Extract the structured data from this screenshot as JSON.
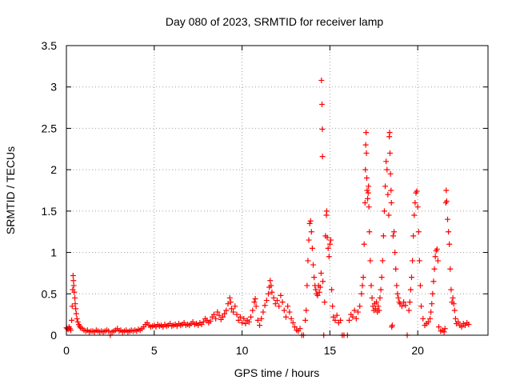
{
  "chart_data": {
    "type": "scatter",
    "title": "Day 080 of 2023, SRMTID for receiver lamp",
    "xlabel": "GPS time / hours",
    "ylabel": "SRMTID / TECUs",
    "xlim": [
      0,
      24
    ],
    "ylim": [
      0,
      3.5
    ],
    "xticks": [
      0,
      5,
      10,
      15,
      20
    ],
    "xtick_labels": [
      "0",
      "5",
      "10",
      "15",
      "20"
    ],
    "yticks": [
      0,
      0.5,
      1,
      1.5,
      2,
      2.5,
      3,
      3.5
    ],
    "ytick_labels": [
      "0",
      "0.5",
      "1",
      "1.5",
      "2",
      "2.5",
      "3",
      "3.5"
    ],
    "grid": true,
    "marker": "+",
    "color": "#ff0000",
    "series": [
      {
        "name": "SRMTID",
        "points": [
          [
            0.0,
            0.09
          ],
          [
            0.05,
            0.08
          ],
          [
            0.1,
            0.07
          ],
          [
            0.15,
            0.1
          ],
          [
            0.2,
            0.08
          ],
          [
            0.25,
            0.06
          ],
          [
            0.3,
            0.18
          ],
          [
            0.33,
            0.35
          ],
          [
            0.36,
            0.55
          ],
          [
            0.38,
            0.72
          ],
          [
            0.4,
            0.66
          ],
          [
            0.42,
            0.6
          ],
          [
            0.45,
            0.52
          ],
          [
            0.48,
            0.45
          ],
          [
            0.5,
            0.38
          ],
          [
            0.53,
            0.32
          ],
          [
            0.56,
            0.26
          ],
          [
            0.6,
            0.2
          ],
          [
            0.65,
            0.16
          ],
          [
            0.7,
            0.13
          ],
          [
            0.75,
            0.11
          ],
          [
            0.8,
            0.09
          ],
          [
            0.9,
            0.08
          ],
          [
            1.0,
            0.06
          ],
          [
            1.1,
            0.05
          ],
          [
            1.2,
            0.06
          ],
          [
            1.3,
            0.04
          ],
          [
            1.4,
            0.05
          ],
          [
            1.5,
            0.05
          ],
          [
            1.6,
            0.04
          ],
          [
            1.7,
            0.06
          ],
          [
            1.8,
            0.05
          ],
          [
            1.9,
            0.04
          ],
          [
            2.0,
            0.05
          ],
          [
            2.1,
            0.04
          ],
          [
            2.2,
            0.05
          ],
          [
            2.3,
            0.06
          ],
          [
            2.4,
            0.05
          ],
          [
            2.5,
            0.0
          ],
          [
            2.6,
            0.04
          ],
          [
            2.7,
            0.05
          ],
          [
            2.8,
            0.06
          ],
          [
            2.9,
            0.08
          ],
          [
            3.0,
            0.05
          ],
          [
            3.1,
            0.06
          ],
          [
            3.2,
            0.04
          ],
          [
            3.3,
            0.05
          ],
          [
            3.4,
            0.06
          ],
          [
            3.5,
            0.04
          ],
          [
            3.6,
            0.05
          ],
          [
            3.7,
            0.06
          ],
          [
            3.8,
            0.05
          ],
          [
            3.9,
            0.06
          ],
          [
            4.0,
            0.05
          ],
          [
            4.1,
            0.07
          ],
          [
            4.2,
            0.06
          ],
          [
            4.3,
            0.08
          ],
          [
            4.4,
            0.1
          ],
          [
            4.5,
            0.13
          ],
          [
            4.6,
            0.15
          ],
          [
            4.7,
            0.12
          ],
          [
            4.8,
            0.1
          ],
          [
            4.9,
            0.11
          ],
          [
            5.0,
            0.12
          ],
          [
            5.1,
            0.1
          ],
          [
            5.2,
            0.13
          ],
          [
            5.3,
            0.11
          ],
          [
            5.4,
            0.12
          ],
          [
            5.5,
            0.1
          ],
          [
            5.6,
            0.13
          ],
          [
            5.7,
            0.11
          ],
          [
            5.8,
            0.12
          ],
          [
            5.9,
            0.14
          ],
          [
            6.0,
            0.11
          ],
          [
            6.1,
            0.12
          ],
          [
            6.2,
            0.13
          ],
          [
            6.3,
            0.11
          ],
          [
            6.4,
            0.14
          ],
          [
            6.5,
            0.12
          ],
          [
            6.6,
            0.13
          ],
          [
            6.7,
            0.15
          ],
          [
            6.8,
            0.12
          ],
          [
            6.9,
            0.13
          ],
          [
            7.0,
            0.12
          ],
          [
            7.1,
            0.14
          ],
          [
            7.2,
            0.16
          ],
          [
            7.3,
            0.13
          ],
          [
            7.4,
            0.14
          ],
          [
            7.5,
            0.12
          ],
          [
            7.6,
            0.15
          ],
          [
            7.7,
            0.13
          ],
          [
            7.8,
            0.16
          ],
          [
            7.9,
            0.2
          ],
          [
            8.0,
            0.18
          ],
          [
            8.1,
            0.15
          ],
          [
            8.2,
            0.17
          ],
          [
            8.3,
            0.22
          ],
          [
            8.4,
            0.25
          ],
          [
            8.5,
            0.2
          ],
          [
            8.6,
            0.28
          ],
          [
            8.7,
            0.24
          ],
          [
            8.8,
            0.19
          ],
          [
            8.9,
            0.22
          ],
          [
            9.0,
            0.26
          ],
          [
            9.1,
            0.3
          ],
          [
            9.2,
            0.38
          ],
          [
            9.3,
            0.45
          ],
          [
            9.35,
            0.4
          ],
          [
            9.4,
            0.32
          ],
          [
            9.5,
            0.28
          ],
          [
            9.6,
            0.35
          ],
          [
            9.7,
            0.25
          ],
          [
            9.8,
            0.18
          ],
          [
            9.9,
            0.22
          ],
          [
            10.0,
            0.15
          ],
          [
            10.1,
            0.2
          ],
          [
            10.2,
            0.14
          ],
          [
            10.3,
            0.18
          ],
          [
            10.4,
            0.16
          ],
          [
            10.5,
            0.22
          ],
          [
            10.6,
            0.3
          ],
          [
            10.7,
            0.4
          ],
          [
            10.75,
            0.44
          ],
          [
            10.8,
            0.35
          ],
          [
            10.9,
            0.18
          ],
          [
            11.0,
            0.12
          ],
          [
            11.1,
            0.2
          ],
          [
            11.2,
            0.28
          ],
          [
            11.3,
            0.36
          ],
          [
            11.4,
            0.42
          ],
          [
            11.5,
            0.5
          ],
          [
            11.55,
            0.58
          ],
          [
            11.6,
            0.66
          ],
          [
            11.65,
            0.6
          ],
          [
            11.7,
            0.52
          ],
          [
            11.8,
            0.45
          ],
          [
            11.9,
            0.38
          ],
          [
            12.0,
            0.42
          ],
          [
            12.1,
            0.35
          ],
          [
            12.2,
            0.48
          ],
          [
            12.3,
            0.4
          ],
          [
            12.4,
            0.3
          ],
          [
            12.5,
            0.22
          ],
          [
            12.6,
            0.35
          ],
          [
            12.7,
            0.28
          ],
          [
            12.8,
            0.2
          ],
          [
            12.9,
            0.15
          ],
          [
            13.0,
            0.1
          ],
          [
            13.1,
            0.06
          ],
          [
            13.2,
            0.05
          ],
          [
            13.3,
            0.08
          ],
          [
            13.4,
            0.0
          ],
          [
            13.5,
            0.0
          ],
          [
            13.6,
            0.18
          ],
          [
            13.65,
            0.3
          ],
          [
            13.7,
            0.6
          ],
          [
            13.75,
            0.9
          ],
          [
            13.8,
            1.15
          ],
          [
            13.85,
            1.35
          ],
          [
            13.9,
            1.38
          ],
          [
            13.95,
            1.25
          ],
          [
            14.0,
            1.05
          ],
          [
            14.05,
            0.85
          ],
          [
            14.1,
            0.7
          ],
          [
            14.15,
            0.6
          ],
          [
            14.2,
            0.55
          ],
          [
            14.25,
            0.5
          ],
          [
            14.3,
            0.48
          ],
          [
            14.35,
            0.6
          ],
          [
            14.4,
            0.52
          ],
          [
            14.45,
            0.58
          ],
          [
            14.5,
            0.75
          ],
          [
            14.52,
            3.08
          ],
          [
            14.55,
            2.79
          ],
          [
            14.57,
            2.49
          ],
          [
            14.58,
            2.16
          ],
          [
            14.6,
            0.65
          ],
          [
            14.65,
            0.0
          ],
          [
            14.7,
            0.4
          ],
          [
            14.75,
            1.2
          ],
          [
            14.8,
            1.45
          ],
          [
            14.82,
            1.5
          ],
          [
            14.85,
            1.18
          ],
          [
            14.9,
            1.05
          ],
          [
            14.95,
            0.95
          ],
          [
            15.0,
            1.1
          ],
          [
            15.05,
            1.15
          ],
          [
            15.1,
            0.55
          ],
          [
            15.15,
            0.35
          ],
          [
            15.2,
            0.22
          ],
          [
            15.3,
            0.18
          ],
          [
            15.4,
            0.24
          ],
          [
            15.5,
            0.15
          ],
          [
            15.6,
            0.18
          ],
          [
            15.7,
            0.0
          ],
          [
            15.8,
            0.0
          ],
          [
            16.0,
            0.0
          ],
          [
            16.1,
            0.18
          ],
          [
            16.2,
            0.25
          ],
          [
            16.3,
            0.22
          ],
          [
            16.4,
            0.3
          ],
          [
            16.5,
            0.2
          ],
          [
            16.6,
            0.28
          ],
          [
            16.7,
            0.35
          ],
          [
            16.8,
            0.5
          ],
          [
            16.85,
            0.6
          ],
          [
            16.9,
            0.7
          ],
          [
            16.95,
            1.1
          ],
          [
            17.0,
            1.6
          ],
          [
            17.02,
            2.0
          ],
          [
            17.04,
            2.3
          ],
          [
            17.06,
            2.45
          ],
          [
            17.08,
            2.2
          ],
          [
            17.1,
            1.9
          ],
          [
            17.12,
            1.75
          ],
          [
            17.15,
            1.65
          ],
          [
            17.18,
            1.72
          ],
          [
            17.2,
            1.8
          ],
          [
            17.22,
            1.55
          ],
          [
            17.25,
            1.25
          ],
          [
            17.3,
            0.9
          ],
          [
            17.35,
            0.6
          ],
          [
            17.4,
            0.45
          ],
          [
            17.45,
            0.35
          ],
          [
            17.5,
            0.3
          ],
          [
            17.55,
            0.38
          ],
          [
            17.6,
            0.32
          ],
          [
            17.65,
            0.4
          ],
          [
            17.7,
            0.28
          ],
          [
            17.75,
            0.35
          ],
          [
            17.8,
            0.3
          ],
          [
            17.85,
            0.45
          ],
          [
            17.9,
            0.55
          ],
          [
            17.95,
            0.7
          ],
          [
            18.0,
            0.9
          ],
          [
            18.05,
            1.2
          ],
          [
            18.1,
            1.5
          ],
          [
            18.15,
            1.8
          ],
          [
            18.2,
            2.1
          ],
          [
            18.25,
            2.0
          ],
          [
            18.3,
            1.7
          ],
          [
            18.35,
            1.45
          ],
          [
            18.38,
            2.4
          ],
          [
            18.4,
            2.45
          ],
          [
            18.42,
            2.2
          ],
          [
            18.45,
            1.95
          ],
          [
            18.48,
            1.75
          ],
          [
            18.5,
            1.6
          ],
          [
            18.52,
            0.1
          ],
          [
            18.55,
            0.12
          ],
          [
            18.6,
            1.2
          ],
          [
            18.65,
            1.25
          ],
          [
            18.7,
            1.0
          ],
          [
            18.75,
            0.8
          ],
          [
            18.8,
            0.6
          ],
          [
            18.85,
            0.5
          ],
          [
            18.9,
            0.45
          ],
          [
            18.95,
            0.4
          ],
          [
            19.0,
            0.38
          ],
          [
            19.1,
            0.35
          ],
          [
            19.2,
            0.4
          ],
          [
            19.3,
            0.36
          ],
          [
            19.4,
            0.0
          ],
          [
            19.5,
            0.3
          ],
          [
            19.55,
            0.4
          ],
          [
            19.6,
            0.55
          ],
          [
            19.65,
            0.7
          ],
          [
            19.7,
            0.9
          ],
          [
            19.75,
            1.2
          ],
          [
            19.8,
            1.45
          ],
          [
            19.85,
            1.6
          ],
          [
            19.9,
            1.72
          ],
          [
            19.95,
            1.74
          ],
          [
            20.0,
            1.55
          ],
          [
            20.05,
            1.25
          ],
          [
            20.1,
            0.9
          ],
          [
            20.15,
            0.6
          ],
          [
            20.2,
            0.35
          ],
          [
            20.3,
            0.2
          ],
          [
            20.4,
            0.12
          ],
          [
            20.5,
            0.14
          ],
          [
            20.6,
            0.16
          ],
          [
            20.7,
            0.2
          ],
          [
            20.75,
            0.28
          ],
          [
            20.8,
            0.38
          ],
          [
            20.85,
            0.5
          ],
          [
            20.9,
            0.65
          ],
          [
            20.95,
            0.8
          ],
          [
            21.0,
            0.95
          ],
          [
            21.05,
            1.02
          ],
          [
            21.1,
            1.04
          ],
          [
            21.15,
            0.9
          ],
          [
            21.2,
            0.1
          ],
          [
            21.3,
            0.05
          ],
          [
            21.4,
            0.06
          ],
          [
            21.5,
            0.04
          ],
          [
            21.55,
            0.08
          ],
          [
            21.6,
            1.6
          ],
          [
            21.62,
            1.75
          ],
          [
            21.65,
            1.62
          ],
          [
            21.7,
            1.4
          ],
          [
            21.75,
            1.25
          ],
          [
            21.8,
            1.1
          ],
          [
            21.85,
            0.8
          ],
          [
            21.9,
            0.55
          ],
          [
            21.95,
            0.4
          ],
          [
            22.0,
            0.45
          ],
          [
            22.05,
            0.38
          ],
          [
            22.1,
            0.3
          ],
          [
            22.15,
            0.2
          ],
          [
            22.2,
            0.14
          ],
          [
            22.3,
            0.16
          ],
          [
            22.4,
            0.12
          ],
          [
            22.5,
            0.1
          ],
          [
            22.6,
            0.14
          ],
          [
            22.7,
            0.12
          ],
          [
            22.8,
            0.15
          ],
          [
            22.9,
            0.13
          ]
        ]
      }
    ]
  }
}
